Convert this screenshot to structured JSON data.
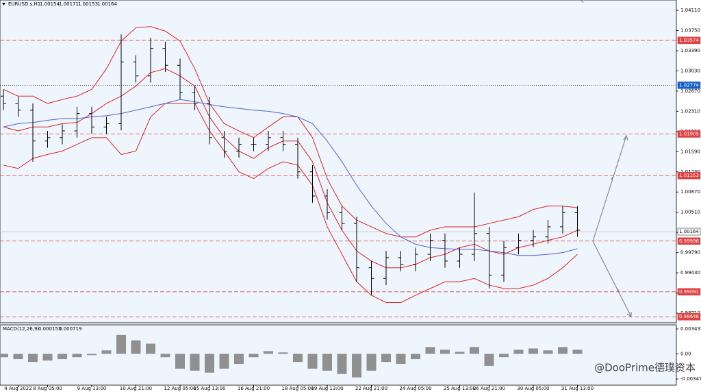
{
  "header": {
    "symbol": "EURUSD.s,H1",
    "quote": [
      1.00154,
      1.00171,
      1.00153,
      1.00164
    ]
  },
  "watermark": "@DooPrime德璞资本",
  "chart_data": [
    {
      "type": "ohlc",
      "color": "#000000",
      "categories": [
        null,
        "4 Aug 2022",
        null,
        "8 Aug 05:00",
        null,
        null,
        "9 Aug 13:00",
        null,
        null,
        "10 Aug 21:00",
        null,
        null,
        "12 Aug 05:00",
        null,
        "15 Aug 13:00",
        null,
        null,
        "16 Aug 21:00",
        null,
        null,
        "18 Aug 05:00",
        null,
        "19 Aug 13:00",
        null,
        null,
        "22 Aug 21:00",
        null,
        null,
        "24 Aug 05:00",
        null,
        null,
        "25 Aug 13:00",
        null,
        "26 Aug 21:00",
        null,
        null,
        "30 Aug 05:00",
        null,
        null,
        "31 Aug 13:00"
      ],
      "open": [
        1.0258,
        1.0245,
        1.0233,
        1.0178,
        1.0184,
        1.0196,
        1.0227,
        1.0203,
        1.0209,
        1.0319,
        1.0294,
        1.0343,
        1.0313,
        1.0264,
        1.0245,
        1.0184,
        1.016,
        1.0172,
        1.0172,
        1.0184,
        1.0172,
        1.0123,
        1.008,
        1.005,
        1.0031,
        0.9952,
        0.9933,
        0.997,
        0.9958,
        0.9976,
        1.0001,
        0.9964,
        0.9976,
        1.0013,
        0.9939,
        0.9988,
        1.0001,
        1.0007,
        1.0025,
        1.005
      ],
      "high": [
        1.027,
        1.0257,
        1.0245,
        1.0196,
        1.0208,
        1.0239,
        1.0239,
        1.0221,
        1.0368,
        1.0331,
        1.0362,
        1.0355,
        1.0325,
        1.0276,
        1.0257,
        1.0196,
        1.0184,
        1.0184,
        1.0196,
        1.0196,
        1.0184,
        1.0135,
        1.0092,
        1.0062,
        1.0043,
        0.9964,
        0.9982,
        0.9982,
        0.9988,
        1.0013,
        1.0013,
        0.9988,
        1.0086,
        1.0025,
        1,
        1.0013,
        1.0019,
        1.0037,
        1.0062,
        1.0062
      ],
      "low": [
        1.0233,
        1.0221,
        1.0141,
        1.0166,
        1.0172,
        1.0184,
        1.0191,
        1.0191,
        1.0197,
        1.0282,
        1.0282,
        1.0301,
        1.0252,
        1.0233,
        1.0172,
        1.0148,
        1.0148,
        1.016,
        1.016,
        1.016,
        1.0111,
        1.0068,
        1.0038,
        1.0019,
        0.9927,
        0.9903,
        0.9921,
        0.9946,
        0.9946,
        0.9964,
        0.9952,
        0.9952,
        0.9964,
        0.9915,
        0.9927,
        0.9976,
        0.9989,
        0.9995,
        1.0013,
        1.0007
      ],
      "close": [
        1.0245,
        1.0233,
        1.0178,
        1.0184,
        1.0196,
        1.0227,
        1.0203,
        1.0209,
        1.0319,
        1.0294,
        1.0343,
        1.0313,
        1.0264,
        1.0245,
        1.0184,
        1.016,
        1.0172,
        1.0172,
        1.0184,
        1.0172,
        1.0123,
        1.008,
        1.005,
        1.0031,
        0.9952,
        0.9933,
        0.997,
        0.9958,
        0.9976,
        1.0001,
        0.9964,
        0.9976,
        1.0013,
        0.9939,
        0.9988,
        1.0001,
        1.0007,
        1.0025,
        1.005,
        1.0019
      ],
      "overlays": [
        {
          "color": "#e02020",
          "values": [
            1.027,
            1.0258,
            1.0258,
            1.0245,
            1.0252,
            1.0258,
            1.027,
            1.0307,
            1.0356,
            1.038,
            1.0382,
            1.0374,
            1.0356,
            1.0307,
            1.0245,
            1.0209,
            1.0196,
            1.0184,
            1.0203,
            1.0221,
            1.0221,
            1.0184,
            1.0111,
            1.0062,
            1.0037,
            1.0025,
            1.0013,
            1.0007,
            1.0007,
            1.0019,
            1.0025,
            1.0025,
            1.0025,
            1.0031,
            1.0037,
            1.0043,
            1.0056,
            1.0062,
            1.0062,
            1.0059
          ]
        },
        {
          "color": "#e02020",
          "values": [
            1.0203,
            1.0196,
            1.0203,
            1.0203,
            1.0209,
            1.0211,
            1.0227,
            1.0245,
            1.0258,
            1.0276,
            1.03,
            1.0307,
            1.0294,
            1.0276,
            1.0221,
            1.0184,
            1.016,
            1.0147,
            1.0166,
            1.0178,
            1.0178,
            1.0141,
            1.0068,
            1.0019,
            0.9982,
            0.9964,
            0.9952,
            0.9952,
            0.9958,
            0.997,
            0.9976,
            0.9988,
            0.9994,
            0.9982,
            0.9976,
            0.9988,
            0.9994,
            1.0001,
            1.0007,
            1.0019
          ]
        },
        {
          "color": "#e02020",
          "values": [
            1.0135,
            1.0129,
            1.0147,
            1.0154,
            1.016,
            1.0172,
            1.0184,
            1.0184,
            1.0154,
            1.016,
            1.0221,
            1.0245,
            1.0245,
            1.0245,
            1.0196,
            1.016,
            1.0123,
            1.0111,
            1.0129,
            1.0141,
            1.0135,
            1.0099,
            1.0025,
            0.9976,
            0.9927,
            0.9903,
            0.989,
            0.989,
            0.9903,
            0.9915,
            0.9927,
            0.9927,
            0.9933,
            0.9921,
            0.9915,
            0.9915,
            0.9921,
            0.9933,
            0.9952,
            0.9976
          ]
        },
        {
          "color": "#5060d8",
          "values": [
            1.0203,
            1.0209,
            1.0211,
            1.0215,
            1.0218,
            1.0218,
            1.0221,
            1.0223,
            1.0227,
            1.0233,
            1.0239,
            1.0245,
            1.0252,
            1.0248,
            1.0243,
            1.0239,
            1.0236,
            1.0233,
            1.0231,
            1.0227,
            1.0221,
            1.0209,
            1.0178,
            1.0141,
            1.0099,
            1.0062,
            1.0031,
            1.0007,
            0.9994,
            0.9988,
            0.9986,
            0.9985,
            0.9985,
            0.9982,
            0.9979,
            0.9974,
            0.9974,
            0.9976,
            0.9979,
            0.9986
          ]
        }
      ],
      "ylim": [
        0.98539,
        1.04294
      ],
      "yticks": [
        {
          "value": 1.0411,
          "label": "1.04110"
        },
        {
          "value": 1.0375,
          "label": "1.03750"
        },
        {
          "value": 1.0339,
          "label": "1.03390"
        },
        {
          "value": 1.0303,
          "label": "1.03030"
        },
        {
          "value": 1.0267,
          "label": "1.02670"
        },
        {
          "value": 1.0231,
          "label": "1.02310"
        },
        {
          "value": 1.0195,
          "label": "1.01950"
        },
        {
          "value": 1.0159,
          "label": "1.01590"
        },
        {
          "value": 1.0123,
          "label": "1.01230"
        },
        {
          "value": 1.0087,
          "label": "1.00870"
        },
        {
          "value": 1.0051,
          "label": "1.00510"
        },
        {
          "value": 1.0015,
          "label": "1.00150"
        },
        {
          "value": 0.9979,
          "label": "0.99790"
        },
        {
          "value": 0.9943,
          "label": "0.99430"
        },
        {
          "value": 0.9907,
          "label": "0.99070"
        },
        {
          "value": 0.9871,
          "label": "0.98710"
        }
      ],
      "levels": [
        {
          "value": 1.03574,
          "label": "1.03574",
          "color": "#e0403f",
          "style": "dash"
        },
        {
          "value": 1.02774,
          "label": "1.02774",
          "color": "#1560c8",
          "style": "dot"
        },
        {
          "value": 1.01905,
          "label": "1.01905",
          "color": "#e0403f",
          "style": "dash"
        },
        {
          "value": 1.01163,
          "label": "1.01163",
          "color": "#e0403f",
          "style": "dash"
        },
        {
          "value": 1.00164,
          "label": "1.00164",
          "color": "#c8c8c8",
          "style": "solid"
        },
        {
          "value": 0.99996,
          "label": "0.99996",
          "color": "#e0403f",
          "style": "dash"
        },
        {
          "value": 0.99091,
          "label": "0.99091",
          "color": "#e0403f",
          "style": "dash"
        },
        {
          "value": 0.98646,
          "label": "0.98646",
          "color": "#e0403f",
          "style": "dash"
        }
      ]
    },
    {
      "type": "bar",
      "label": "MACD(12,26,9)",
      "label_values": [
        0.000153,
        0.000719
      ],
      "color": "#909090",
      "values": [
        -0.00047,
        -0.00074,
        -0.00112,
        -0.00093,
        -0.00074,
        -0.00047,
        -0.00019,
        0.00047,
        0.0026,
        0.00186,
        0.0014,
        -0.00047,
        -0.00205,
        -0.00233,
        -0.0026,
        -0.00205,
        -0.0014,
        -0.00047,
        0.00037,
        0.00019,
        -0.00112,
        -0.00205,
        -0.00233,
        -0.00279,
        -0.00326,
        -0.00233,
        -0.00112,
        -0.0014,
        -0.00074,
        0.00093,
        0.00056,
        0.00028,
        0.00093,
        -0.00167,
        -0.00047,
        0.00056,
        0.00074,
        0.00047,
        0.00093,
        0.00056
      ],
      "ylim": [
        -0.00433,
        0.004
      ],
      "yticks": [
        {
          "value": 0.003432,
          "label": "0.003432"
        },
        {
          "value": 0,
          "label": "0.00"
        },
        {
          "value": -0.003478,
          "label": "-0.003478"
        }
      ]
    }
  ]
}
